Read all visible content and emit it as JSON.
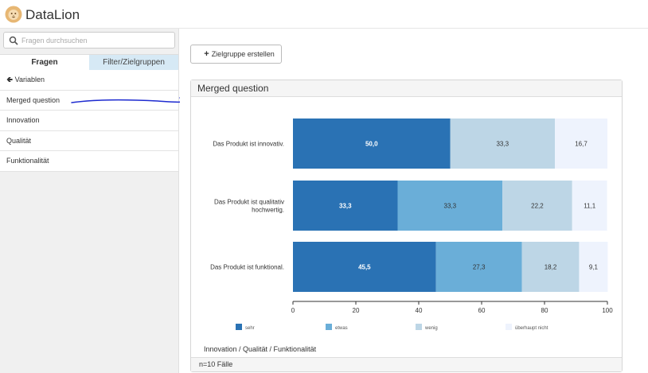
{
  "app": {
    "brand": "DataLion",
    "accent": "#2a72b4"
  },
  "sidebar": {
    "search_placeholder": "Fragen durchsuchen",
    "tabs": [
      {
        "label": "Fragen",
        "active": true
      },
      {
        "label": "Filter/Zielgruppen",
        "active": false
      }
    ],
    "back_label": "Variablen",
    "items": [
      {
        "label": "Merged question"
      },
      {
        "label": "Innovation"
      },
      {
        "label": "Qualität"
      },
      {
        "label": "Funktionalität"
      }
    ]
  },
  "main": {
    "create_button_label": "Zielgruppe erstellen",
    "panel_title": "Merged question",
    "subnote": "Innovation / Qualität / Funktionalität",
    "footer": "n=10 Fälle"
  },
  "chart_data": {
    "type": "bar",
    "orientation": "horizontal",
    "stacked": true,
    "categories": [
      "Das Produkt ist innovativ.",
      "Das Produkt ist qualitativ hochwertig.",
      "Das Produkt ist funktional."
    ],
    "series": [
      {
        "name": "sehr",
        "color": "#2a72b4",
        "values": [
          50.0,
          33.3,
          45.5
        ],
        "labels": [
          "50,0",
          "33,3",
          "45,5"
        ]
      },
      {
        "name": "etwas",
        "color": "#6aaed8",
        "values": [
          0,
          33.3,
          27.3
        ],
        "labels": [
          "",
          "33,3",
          "27,3"
        ]
      },
      {
        "name": "wenig",
        "color": "#bdd6e6",
        "values": [
          33.3,
          22.2,
          18.2
        ],
        "labels": [
          "33,3",
          "22,2",
          "18,2"
        ]
      },
      {
        "name": "überhaupt nicht",
        "color": "#eef3fd",
        "values": [
          16.7,
          11.1,
          9.1
        ],
        "labels": [
          "16,7",
          "11,1",
          "9,1"
        ]
      }
    ],
    "xlim": [
      0,
      100
    ],
    "xticks": [
      0,
      20,
      40,
      60,
      80,
      100
    ],
    "legend": "bottom"
  }
}
